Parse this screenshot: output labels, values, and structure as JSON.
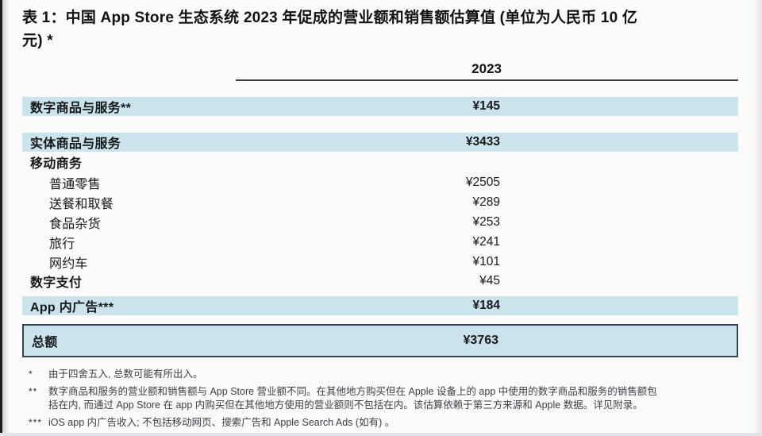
{
  "title": {
    "lines": [
      "表 1：中国 App Store 生态系统 2023 年促成的营业额和销售额估算值 (单位为人民币 10 亿",
      "元) *"
    ]
  },
  "table": {
    "year_header": "2023",
    "currency_unit": "人民币 10 亿元",
    "rows": [
      {
        "label": "数字商品与服务**",
        "value": "¥145"
      },
      {
        "label": "实体商品与服务",
        "value": "¥3433"
      },
      {
        "label": "移动商务",
        "value": ""
      },
      {
        "label": "普通零售",
        "value": "¥2505"
      },
      {
        "label": "送餐和取餐",
        "value": "¥289"
      },
      {
        "label": "食品杂货",
        "value": "¥253"
      },
      {
        "label": "旅行",
        "value": "¥241"
      },
      {
        "label": "网约车",
        "value": "¥101"
      },
      {
        "label": "数字支付",
        "value": "¥45"
      },
      {
        "label": "App 内广告***",
        "value": "¥184"
      },
      {
        "label": "总额",
        "value": "¥3763"
      }
    ]
  },
  "footnotes": [
    {
      "marker": "*",
      "lines": [
        "由于四舍五入, 总数可能有所出入。"
      ]
    },
    {
      "marker": "**",
      "lines": [
        "数字商品和服务的营业额和销售额与 App Store 营业额不同。在其他地方购买但在 Apple 设备上的 app 中使用的数字商品和服务的销售额包",
        "括在内, 而通过 App Store 在 app 内购买但在其他地方使用的营业额则不包括在内。该估算依赖于第三方来源和 Apple 数据。详见附录。"
      ]
    },
    {
      "marker": "***",
      "lines": [
        "iOS app 内广告收入; 不包括移动网页、搜索广告和 Apple Search Ads (如有) 。"
      ]
    }
  ],
  "colors": {
    "row_highlight": "#cbe3ea",
    "total_border": "#36454d",
    "page_edge": "#1c1c1c"
  }
}
